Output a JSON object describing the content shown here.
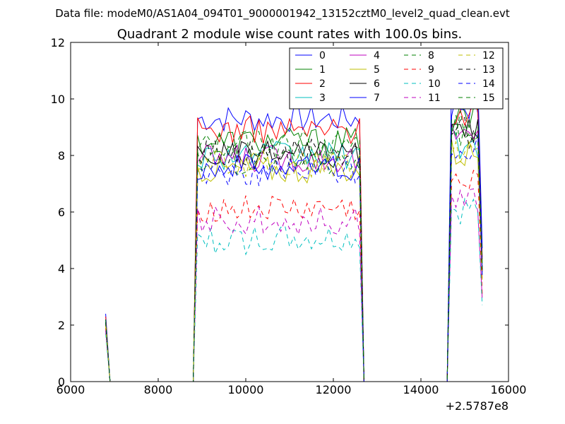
{
  "chart_data": {
    "type": "line",
    "suptitle": "Data file: modeM0/AS1A04_094T01_9000001942_13152cztM0_level2_quad_clean.evt",
    "title": "Quadrant 2 module wise count rates with 100.0s bins.",
    "xlabel": "",
    "ylabel": "",
    "xlim": [
      6000,
      16000
    ],
    "ylim": [
      0,
      12
    ],
    "x_offset_label": "+2.5787e8",
    "xticks": [
      6000,
      8000,
      10000,
      12000,
      14000,
      16000
    ],
    "yticks": [
      0,
      2,
      4,
      6,
      8,
      10,
      12
    ],
    "legend_position": "top-right",
    "legend_columns": 4,
    "segments": [
      {
        "x_start": 6800,
        "x_end": 6900
      },
      {
        "x_start": 8800,
        "x_end": 12700
      },
      {
        "x_start": 14600,
        "x_end": 15400
      }
    ],
    "series": [
      {
        "name": "0",
        "color": "#0000ff",
        "dash": "solid",
        "segment_levels": [
          2.4,
          9.3,
          9.8
        ]
      },
      {
        "name": "1",
        "color": "#008000",
        "dash": "solid",
        "segment_levels": [
          2.2,
          8.5,
          9.3
        ]
      },
      {
        "name": "2",
        "color": "#ff0000",
        "dash": "solid",
        "segment_levels": [
          2.3,
          8.9,
          9.6
        ]
      },
      {
        "name": "3",
        "color": "#00bfbf",
        "dash": "solid",
        "segment_levels": [
          2.1,
          8.0,
          8.4
        ]
      },
      {
        "name": "4",
        "color": "#bf00bf",
        "dash": "solid",
        "segment_levels": [
          2.1,
          7.9,
          8.6
        ]
      },
      {
        "name": "5",
        "color": "#bfbf00",
        "dash": "solid",
        "segment_levels": [
          2.0,
          7.5,
          8.1
        ]
      },
      {
        "name": "6",
        "color": "#000000",
        "dash": "solid",
        "segment_levels": [
          2.1,
          8.0,
          8.7
        ]
      },
      {
        "name": "7",
        "color": "#0000ff",
        "dash": "solid",
        "segment_levels": [
          2.2,
          7.6,
          10.5
        ]
      },
      {
        "name": "8",
        "color": "#008000",
        "dash": "dashed",
        "segment_levels": [
          2.2,
          8.4,
          9.0
        ]
      },
      {
        "name": "9",
        "color": "#ff0000",
        "dash": "dashed",
        "segment_levels": [
          1.9,
          6.1,
          6.9
        ]
      },
      {
        "name": "10",
        "color": "#00bfbf",
        "dash": "dashed",
        "segment_levels": [
          1.7,
          5.0,
          6.0
        ]
      },
      {
        "name": "11",
        "color": "#bf00bf",
        "dash": "dashed",
        "segment_levels": [
          1.8,
          5.7,
          6.5
        ]
      },
      {
        "name": "12",
        "color": "#bfbf00",
        "dash": "dashed",
        "segment_levels": [
          2.0,
          7.7,
          8.0
        ]
      },
      {
        "name": "13",
        "color": "#000000",
        "dash": "dashed",
        "segment_levels": [
          2.1,
          8.1,
          8.8
        ]
      },
      {
        "name": "14",
        "color": "#0000ff",
        "dash": "dashed",
        "segment_levels": [
          2.1,
          7.4,
          8.2
        ]
      },
      {
        "name": "15",
        "color": "#008000",
        "dash": "dashed",
        "segment_levels": [
          2.1,
          7.8,
          8.9
        ]
      }
    ]
  }
}
